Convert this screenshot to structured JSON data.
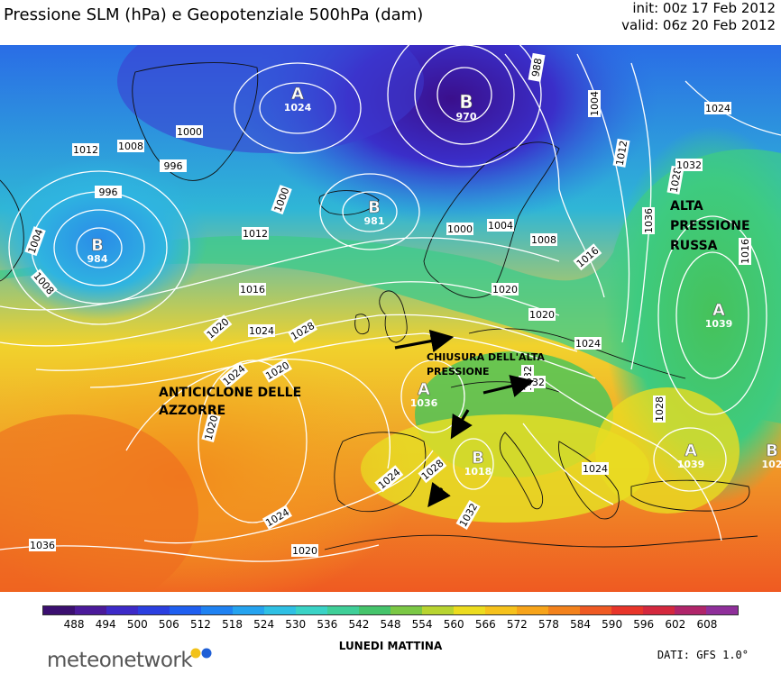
{
  "header": {
    "title": "Pressione SLM (hPa) e Geopotenziale 500hPa (dam)",
    "init": "init: 00z 17 Feb 2012",
    "valid": "valid: 06z 20 Feb 2012"
  },
  "map": {
    "pressure_centers": [
      {
        "letter": "A",
        "value": "1024"
      },
      {
        "letter": "B",
        "value": "970"
      },
      {
        "letter": "B",
        "value": "981"
      },
      {
        "letter": "B",
        "value": "984"
      },
      {
        "letter": "A",
        "value": "1036"
      },
      {
        "letter": "B",
        "value": "1018"
      },
      {
        "letter": "A",
        "value": "1039"
      },
      {
        "letter": "A",
        "value": "1039"
      },
      {
        "letter": "B",
        "value": "102"
      }
    ],
    "isobar_labels": [
      "1012",
      "1008",
      "1000",
      "996",
      "996",
      "1000",
      "1004",
      "1008",
      "1012",
      "1016",
      "1020",
      "1024",
      "1028",
      "1024",
      "1020",
      "1020",
      "1024",
      "1028",
      "1032",
      "1036",
      "1024",
      "1020",
      "988",
      "1004",
      "1012",
      "1000",
      "1004",
      "1008",
      "1016",
      "1020",
      "1024",
      "1028",
      "1032",
      "1020",
      "1024",
      "1032",
      "1036",
      "1016",
      "1024",
      "1028",
      "1032"
    ],
    "annotations": {
      "azores": [
        "ANTICICLONE DELLE",
        "AZZORRE"
      ],
      "russia": [
        "ALTA",
        "PRESSIONE",
        "RUSSA"
      ],
      "closure": [
        "CHIUSURA DELL'ALTA",
        "PRESSIONE"
      ]
    }
  },
  "legend": {
    "unit_label": "",
    "ticks": [
      "488",
      "494",
      "500",
      "506",
      "512",
      "518",
      "524",
      "530",
      "536",
      "542",
      "548",
      "554",
      "560",
      "566",
      "572",
      "578",
      "584",
      "590",
      "596",
      "602",
      "608"
    ],
    "colors": [
      "#3b0f70",
      "#4b1a9a",
      "#3d2ac8",
      "#2b3fe0",
      "#1f5ff0",
      "#1f82f2",
      "#25a3ef",
      "#2fc0e4",
      "#3ad3c6",
      "#3fcf98",
      "#45c46b",
      "#7bc845",
      "#b8d430",
      "#ecdc1f",
      "#f6c21c",
      "#f7a41a",
      "#f3821c",
      "#ef5a23",
      "#e8352a",
      "#d4283e",
      "#b0256a",
      "#8f2f9a"
    ]
  },
  "caption": "LUNEDI MATTINA",
  "logo": "meteonetwork",
  "source": "DATI: GFS 1.0°"
}
